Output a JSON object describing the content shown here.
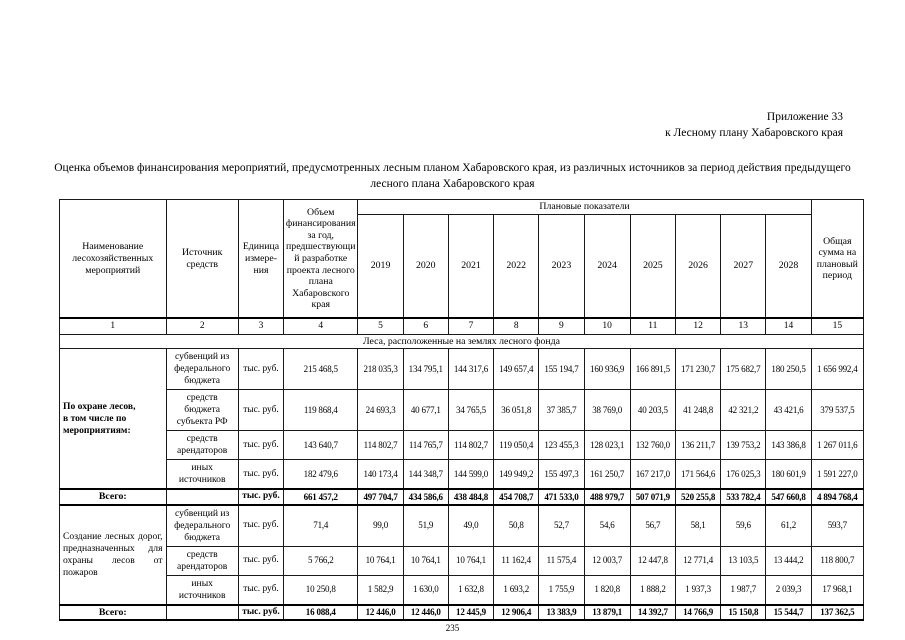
{
  "appendix": {
    "line1": "Приложение 33",
    "line2": "к Лесному плану Хабаровского края"
  },
  "title": "Оценка объемов финансирования мероприятий, предусмотренных лесным планом Хабаровского края, из различных источников за период действия предыдущего лесного плана Хабаровского края",
  "page_number": "235",
  "table": {
    "headers": {
      "col1": "Наименование лесохозяйственных мероприятий",
      "col2": "Источник средств",
      "col3": "Единица измере-ния",
      "col4": "Объем финансирования за год, предшествующий разработке проекта лесного плана Хабаровского края",
      "planned": "Плановые показатели",
      "years": [
        "2019",
        "2020",
        "2021",
        "2022",
        "2023",
        "2024",
        "2025",
        "2026",
        "2027",
        "2028"
      ],
      "col15": "Общая сумма на плановый период"
    },
    "col_numbers": [
      "1",
      "2",
      "3",
      "4",
      "5",
      "6",
      "7",
      "8",
      "9",
      "10",
      "11",
      "12",
      "13",
      "14",
      "15"
    ],
    "section": "Леса, расположенные на землях лесного фонда",
    "blocks": [
      {
        "name": "По охране лесов,\nв том числе по\nмероприятиям:",
        "bold": true,
        "justify": false,
        "rows": [
          {
            "source": "субвенций из\nфедерального\nбюджета",
            "unit": "тыс. руб.",
            "values": [
              "215 468,5",
              "218 035,3",
              "134 795,1",
              "144 317,6",
              "149 657,4",
              "155 194,7",
              "160 936,9",
              "166 891,5",
              "171 230,7",
              "175 682,7",
              "180 250,5",
              "1 656 992,4"
            ]
          },
          {
            "source": "средств\nбюджета\nсубъекта РФ",
            "unit": "тыс. руб.",
            "values": [
              "119 868,4",
              "24 693,3",
              "40 677,1",
              "34 765,5",
              "36 051,8",
              "37 385,7",
              "38 769,0",
              "40 203,5",
              "41 248,8",
              "42 321,2",
              "43 421,6",
              "379 537,5"
            ]
          },
          {
            "source": "средств\nарендаторов",
            "unit": "тыс. руб.",
            "values": [
              "143 640,7",
              "114 802,7",
              "114 765,7",
              "114 802,7",
              "119 050,4",
              "123 455,3",
              "128 023,1",
              "132 760,0",
              "136 211,7",
              "139 753,2",
              "143 386,8",
              "1 267 011,6"
            ]
          },
          {
            "source": "иных\nисточников",
            "unit": "тыс. руб.",
            "values": [
              "182 479,6",
              "140 173,4",
              "144 348,7",
              "144 599,0",
              "149 949,2",
              "155 497,3",
              "161 250,7",
              "167 217,0",
              "171 564,6",
              "176 025,3",
              "180 601,9",
              "1 591 227,0"
            ]
          }
        ],
        "total": {
          "label": "Всего:",
          "unit": "тыс. руб.",
          "values": [
            "661 457,2",
            "497 704,7",
            "434 586,6",
            "438 484,8",
            "454 708,7",
            "471 533,0",
            "488 979,7",
            "507 071,9",
            "520 255,8",
            "533 782,4",
            "547 660,8",
            "4 894 768,4"
          ]
        }
      },
      {
        "name": "Создание лесных дорог, предназначенных для охраны лесов от пожаров",
        "bold": false,
        "justify": true,
        "rows": [
          {
            "source": "субвенций из\nфедерального\nбюджета",
            "unit": "тыс. руб.",
            "values": [
              "71,4",
              "99,0",
              "51,9",
              "49,0",
              "50,8",
              "52,7",
              "54,6",
              "56,7",
              "58,1",
              "59,6",
              "61,2",
              "593,7"
            ]
          },
          {
            "source": "средств\nарендаторов",
            "unit": "тыс. руб.",
            "values": [
              "5 766,2",
              "10 764,1",
              "10 764,1",
              "10 764,1",
              "11 162,4",
              "11 575,4",
              "12 003,7",
              "12 447,8",
              "12 771,4",
              "13 103,5",
              "13 444,2",
              "118 800,7"
            ]
          },
          {
            "source": "иных\nисточников",
            "unit": "тыс. руб.",
            "values": [
              "10 250,8",
              "1 582,9",
              "1 630,0",
              "1 632,8",
              "1 693,2",
              "1 755,9",
              "1 820,8",
              "1 888,2",
              "1 937,3",
              "1 987,7",
              "2 039,3",
              "17 968,1"
            ]
          }
        ],
        "total": {
          "label": "Всего:",
          "unit": "тыс. руб.",
          "values": [
            "16 088,4",
            "12 446,0",
            "12 446,0",
            "12 445,9",
            "12 906,4",
            "13 383,9",
            "13 879,1",
            "14 392,7",
            "14 766,9",
            "15 150,8",
            "15 544,7",
            "137 362,5"
          ]
        }
      }
    ]
  }
}
